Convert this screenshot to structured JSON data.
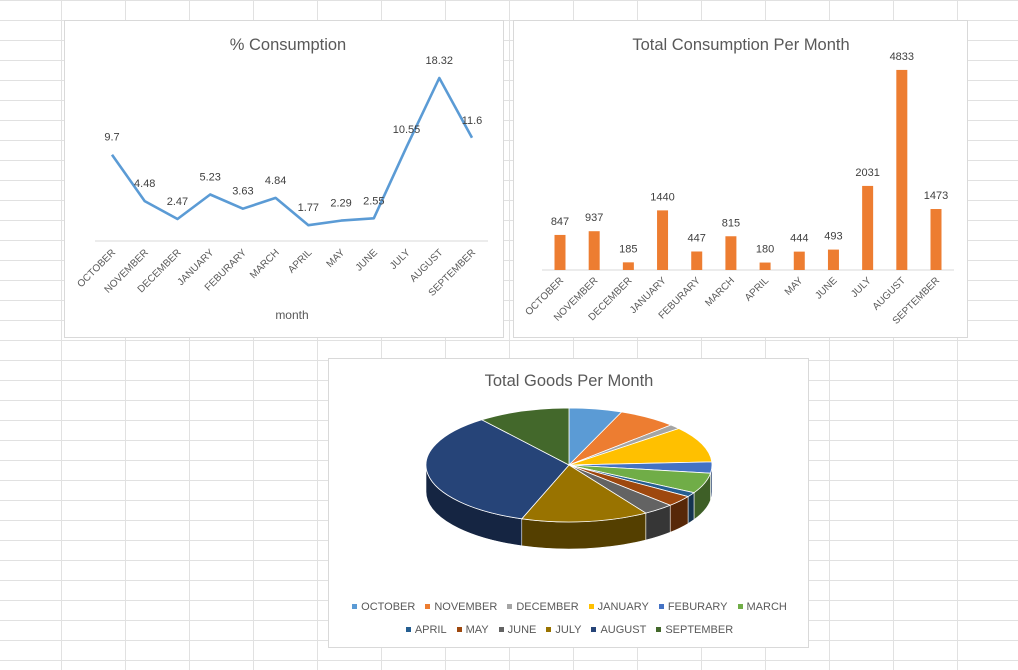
{
  "chart_data": [
    {
      "type": "line",
      "title": "% Consumption",
      "xlabel": "month",
      "ylabel": "",
      "categories": [
        "OCTOBER",
        "NOVEMBER",
        "DECEMBER",
        "JANUARY",
        "FEBURARY",
        "MARCH",
        "APRIL",
        "MAY",
        "JUNE",
        "JULY",
        "AUGUST",
        "SEPTEMBER"
      ],
      "values": [
        9.7,
        4.48,
        2.47,
        5.23,
        3.63,
        4.84,
        1.77,
        2.29,
        2.55,
        10.55,
        18.32,
        11.6
      ],
      "ylim": [
        0,
        20
      ],
      "grid": false,
      "color": "#5b9bd5"
    },
    {
      "type": "bar",
      "title": "Total Consumption Per Month",
      "xlabel": "",
      "ylabel": "",
      "categories": [
        "OCTOBER",
        "NOVEMBER",
        "DECEMBER",
        "JANUARY",
        "FEBURARY",
        "MARCH",
        "APRIL",
        "MAY",
        "JUNE",
        "JULY",
        "AUGUST",
        "SEPTEMBER"
      ],
      "values": [
        847,
        937,
        185,
        1440,
        447,
        815,
        180,
        444,
        493,
        2031,
        4833,
        1473
      ],
      "ylim": [
        0,
        5000
      ],
      "grid": false,
      "color": "#ed7d31"
    },
    {
      "type": "pie",
      "title": "Total Goods Per Month",
      "categories": [
        "OCTOBER",
        "NOVEMBER",
        "DECEMBER",
        "JANUARY",
        "FEBURARY",
        "MARCH",
        "APRIL",
        "MAY",
        "JUNE",
        "JULY",
        "AUGUST",
        "SEPTEMBER"
      ],
      "values": [
        847,
        937,
        185,
        1440,
        447,
        815,
        180,
        444,
        493,
        2031,
        4833,
        1473
      ],
      "legend": "bottom",
      "colors": [
        "#5b9bd5",
        "#ed7d31",
        "#a5a5a5",
        "#ffc000",
        "#4472c4",
        "#70ad47",
        "#255e91",
        "#9e480e",
        "#636363",
        "#997300",
        "#264478",
        "#43682b"
      ]
    }
  ]
}
